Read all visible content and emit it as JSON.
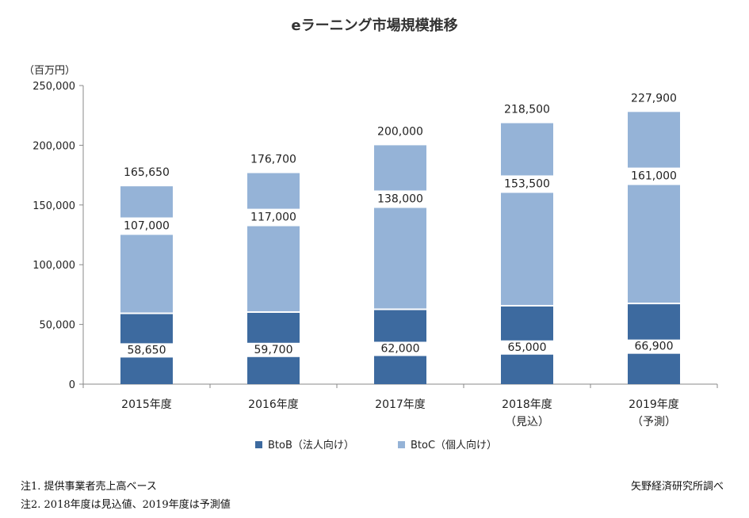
{
  "chart_data": {
    "type": "bar",
    "stacked": true,
    "title": "eラーニング市場規模推移",
    "unit_label": "（百万円）",
    "ylim": [
      0,
      250000
    ],
    "yticks": [
      "0",
      "50,000",
      "100,000",
      "150,000",
      "200,000",
      "250,000"
    ],
    "ytick_values": [
      0,
      50000,
      100000,
      150000,
      200000,
      250000
    ],
    "categories": [
      {
        "line1": "2015年度",
        "line2": ""
      },
      {
        "line1": "2016年度",
        "line2": ""
      },
      {
        "line1": "2017年度",
        "line2": ""
      },
      {
        "line1": "2018年度",
        "line2": "（見込）"
      },
      {
        "line1": "2019年度",
        "line2": "（予測）"
      }
    ],
    "series": [
      {
        "name": "BtoB（法人向け）",
        "color": "#3d6a9f",
        "values": [
          58650,
          59700,
          62000,
          65000,
          66900
        ],
        "labels": [
          "58,650",
          "59,700",
          "62,000",
          "65,000",
          "66,900"
        ]
      },
      {
        "name": "BtoC（個人向け）",
        "color": "#95b3d7",
        "values": [
          107000,
          117000,
          138000,
          153500,
          161000
        ],
        "labels": [
          "107,000",
          "117,000",
          "138,000",
          "153,500",
          "161,000"
        ]
      }
    ],
    "totals": [
      165650,
      176700,
      200000,
      218500,
      227900
    ],
    "total_labels": [
      "165,650",
      "176,700",
      "200,000",
      "218,500",
      "227,900"
    ],
    "legend_position": "bottom"
  },
  "notes": {
    "note1": "注1. 提供事業者売上高ベース",
    "note2": "注2. 2018年度は見込値、2019年度は予測値",
    "source": "矢野経済研究所調べ"
  }
}
